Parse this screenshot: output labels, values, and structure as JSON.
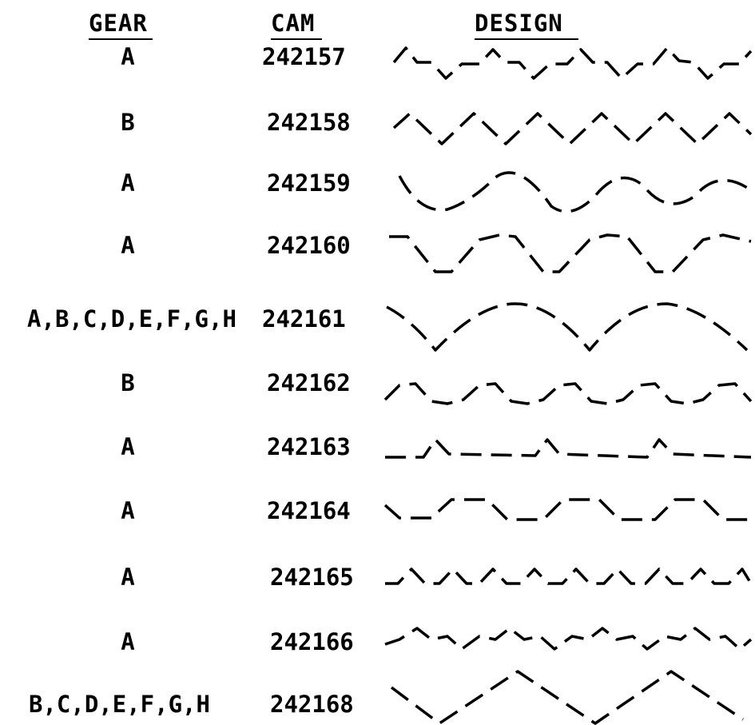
{
  "headers": {
    "gear": "GEAR",
    "cam": "CAM",
    "design": "DESIGN"
  },
  "rows": [
    {
      "gear": "A",
      "cam": "242157"
    },
    {
      "gear": "B",
      "cam": "242158"
    },
    {
      "gear": "A",
      "cam": "242159"
    },
    {
      "gear": "A",
      "cam": "242160"
    },
    {
      "gear": "A,B,C,D,E,F,G,H",
      "cam": "242161"
    },
    {
      "gear": "B",
      "cam": "242162"
    },
    {
      "gear": "A",
      "cam": "242163"
    },
    {
      "gear": "A",
      "cam": "242164"
    },
    {
      "gear": "A",
      "cam": "242165"
    },
    {
      "gear": "A",
      "cam": "242166"
    },
    {
      "gear": "B,C,D,E,F,G,H",
      "cam": "242168"
    }
  ]
}
